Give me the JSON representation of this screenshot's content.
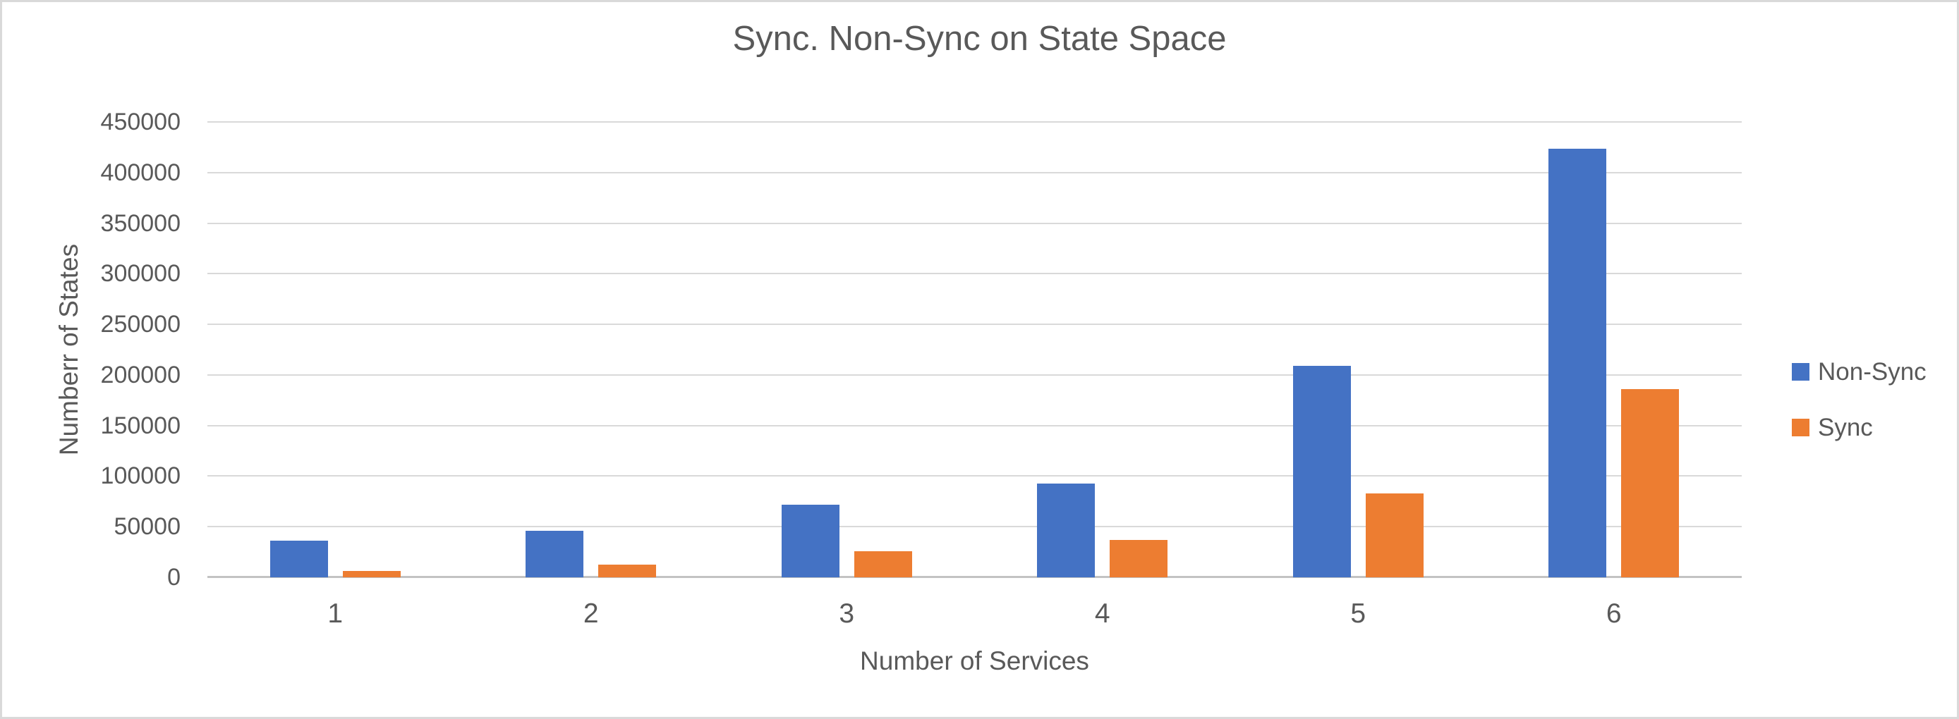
{
  "chart_data": {
    "type": "bar",
    "title": "Sync. Non-Sync on State Space",
    "xlabel": "Number of Services",
    "ylabel": "Numberr of States",
    "categories": [
      "1",
      "2",
      "3",
      "4",
      "5",
      "6"
    ],
    "series": [
      {
        "name": "Non-Sync",
        "color": "#4472C4",
        "values": [
          36500,
          46000,
          72000,
          92500,
          209000,
          423500
        ]
      },
      {
        "name": "Sync",
        "color": "#ED7D31",
        "values": [
          6000,
          12500,
          25500,
          37000,
          83000,
          186000
        ]
      }
    ],
    "ylim": [
      0,
      450000
    ],
    "ytick_step": 50000,
    "yticks": [
      "0",
      "50000",
      "100000",
      "150000",
      "200000",
      "250000",
      "300000",
      "350000",
      "400000",
      "450000"
    ],
    "grid": true,
    "legend_position": "right",
    "colors": {
      "text": "#595959",
      "gridline": "#D9D9D9",
      "axis_line": "#C3C3C3",
      "background": "#FFFFFF",
      "border": "#D9D9D9"
    }
  }
}
